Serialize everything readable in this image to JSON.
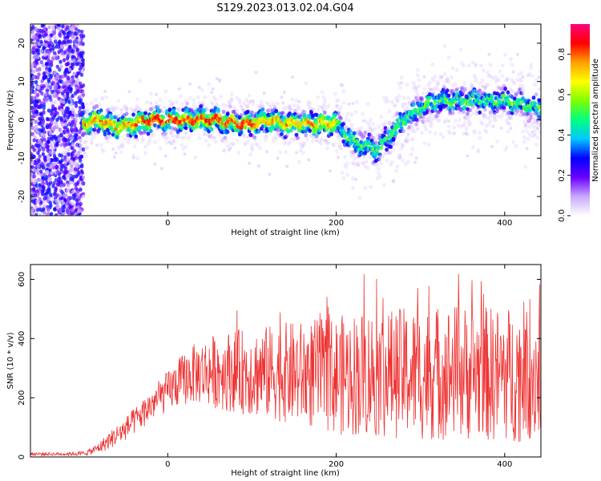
{
  "title": "S129.2023.013.02.04.G04",
  "chart_data": [
    {
      "type": "heatmap",
      "xlabel": "Height of straight line (km)",
      "ylabel": "Frequency (Hz)",
      "xlim": [
        -163,
        443
      ],
      "ylim": [
        -25,
        25
      ],
      "xticks": [
        0,
        200,
        400
      ],
      "yticks": [
        -20,
        -10,
        0,
        10,
        20
      ],
      "ridge_x": [
        -100,
        -80,
        -60,
        -40,
        -20,
        0,
        20,
        40,
        60,
        80,
        100,
        120,
        140,
        160,
        180,
        200,
        220,
        240,
        250,
        260,
        280,
        300,
        320,
        340,
        360,
        380,
        400,
        420,
        443
      ],
      "ridge_freq": [
        -1,
        0,
        -2,
        -1,
        0,
        0,
        0,
        0,
        0,
        -1,
        -1,
        0,
        -1,
        -1,
        -1,
        -1,
        -6,
        -7,
        -8,
        -5,
        0,
        3,
        5,
        5,
        5,
        5,
        5,
        4,
        3
      ],
      "colorbar": {
        "label": "Normalized spectral amplitude",
        "ticks": [
          "0.0",
          "0.2",
          "0.4",
          "0.6",
          "0.8"
        ],
        "range": [
          0,
          0.95
        ],
        "colors": [
          "#ffffff",
          "#c8a8ff",
          "#6a00ff",
          "#0000ff",
          "#00c8ff",
          "#00ff80",
          "#80ff00",
          "#ffff00",
          "#ffa000",
          "#ff0000",
          "#ff0080"
        ]
      }
    },
    {
      "type": "line",
      "xlabel": "Height of straight line (km)",
      "ylabel": "SNR (10 * v/v)",
      "xlim": [
        -163,
        443
      ],
      "ylim": [
        0,
        650
      ],
      "xticks": [
        0,
        200,
        400
      ],
      "yticks": [
        0,
        200,
        400,
        600
      ],
      "series_color": "#ee3333",
      "series": [
        {
          "x": [
            -163,
            -140,
            -120,
            -100,
            -90,
            -80,
            -70,
            -60,
            -50,
            -40,
            -30,
            -20,
            -10,
            0,
            10,
            20,
            30,
            40,
            50,
            60,
            80,
            100,
            120,
            140,
            160,
            180,
            200,
            220,
            240,
            260,
            280,
            300,
            320,
            340,
            360,
            380,
            400,
            420,
            443
          ],
          "center": [
            10,
            10,
            10,
            12,
            20,
            35,
            55,
            75,
            95,
            120,
            145,
            175,
            200,
            220,
            245,
            265,
            280,
            285,
            290,
            290,
            290,
            285,
            285,
            285,
            280,
            280,
            275,
            280,
            285,
            280,
            285,
            280,
            285,
            290,
            285,
            280,
            280,
            280,
            285
          ],
          "spread": [
            6,
            6,
            6,
            8,
            12,
            20,
            30,
            35,
            40,
            45,
            50,
            55,
            60,
            70,
            80,
            90,
            100,
            110,
            120,
            130,
            140,
            150,
            160,
            170,
            180,
            190,
            200,
            210,
            220,
            220,
            220,
            225,
            230,
            230,
            230,
            230,
            230,
            230,
            230
          ]
        }
      ]
    }
  ]
}
